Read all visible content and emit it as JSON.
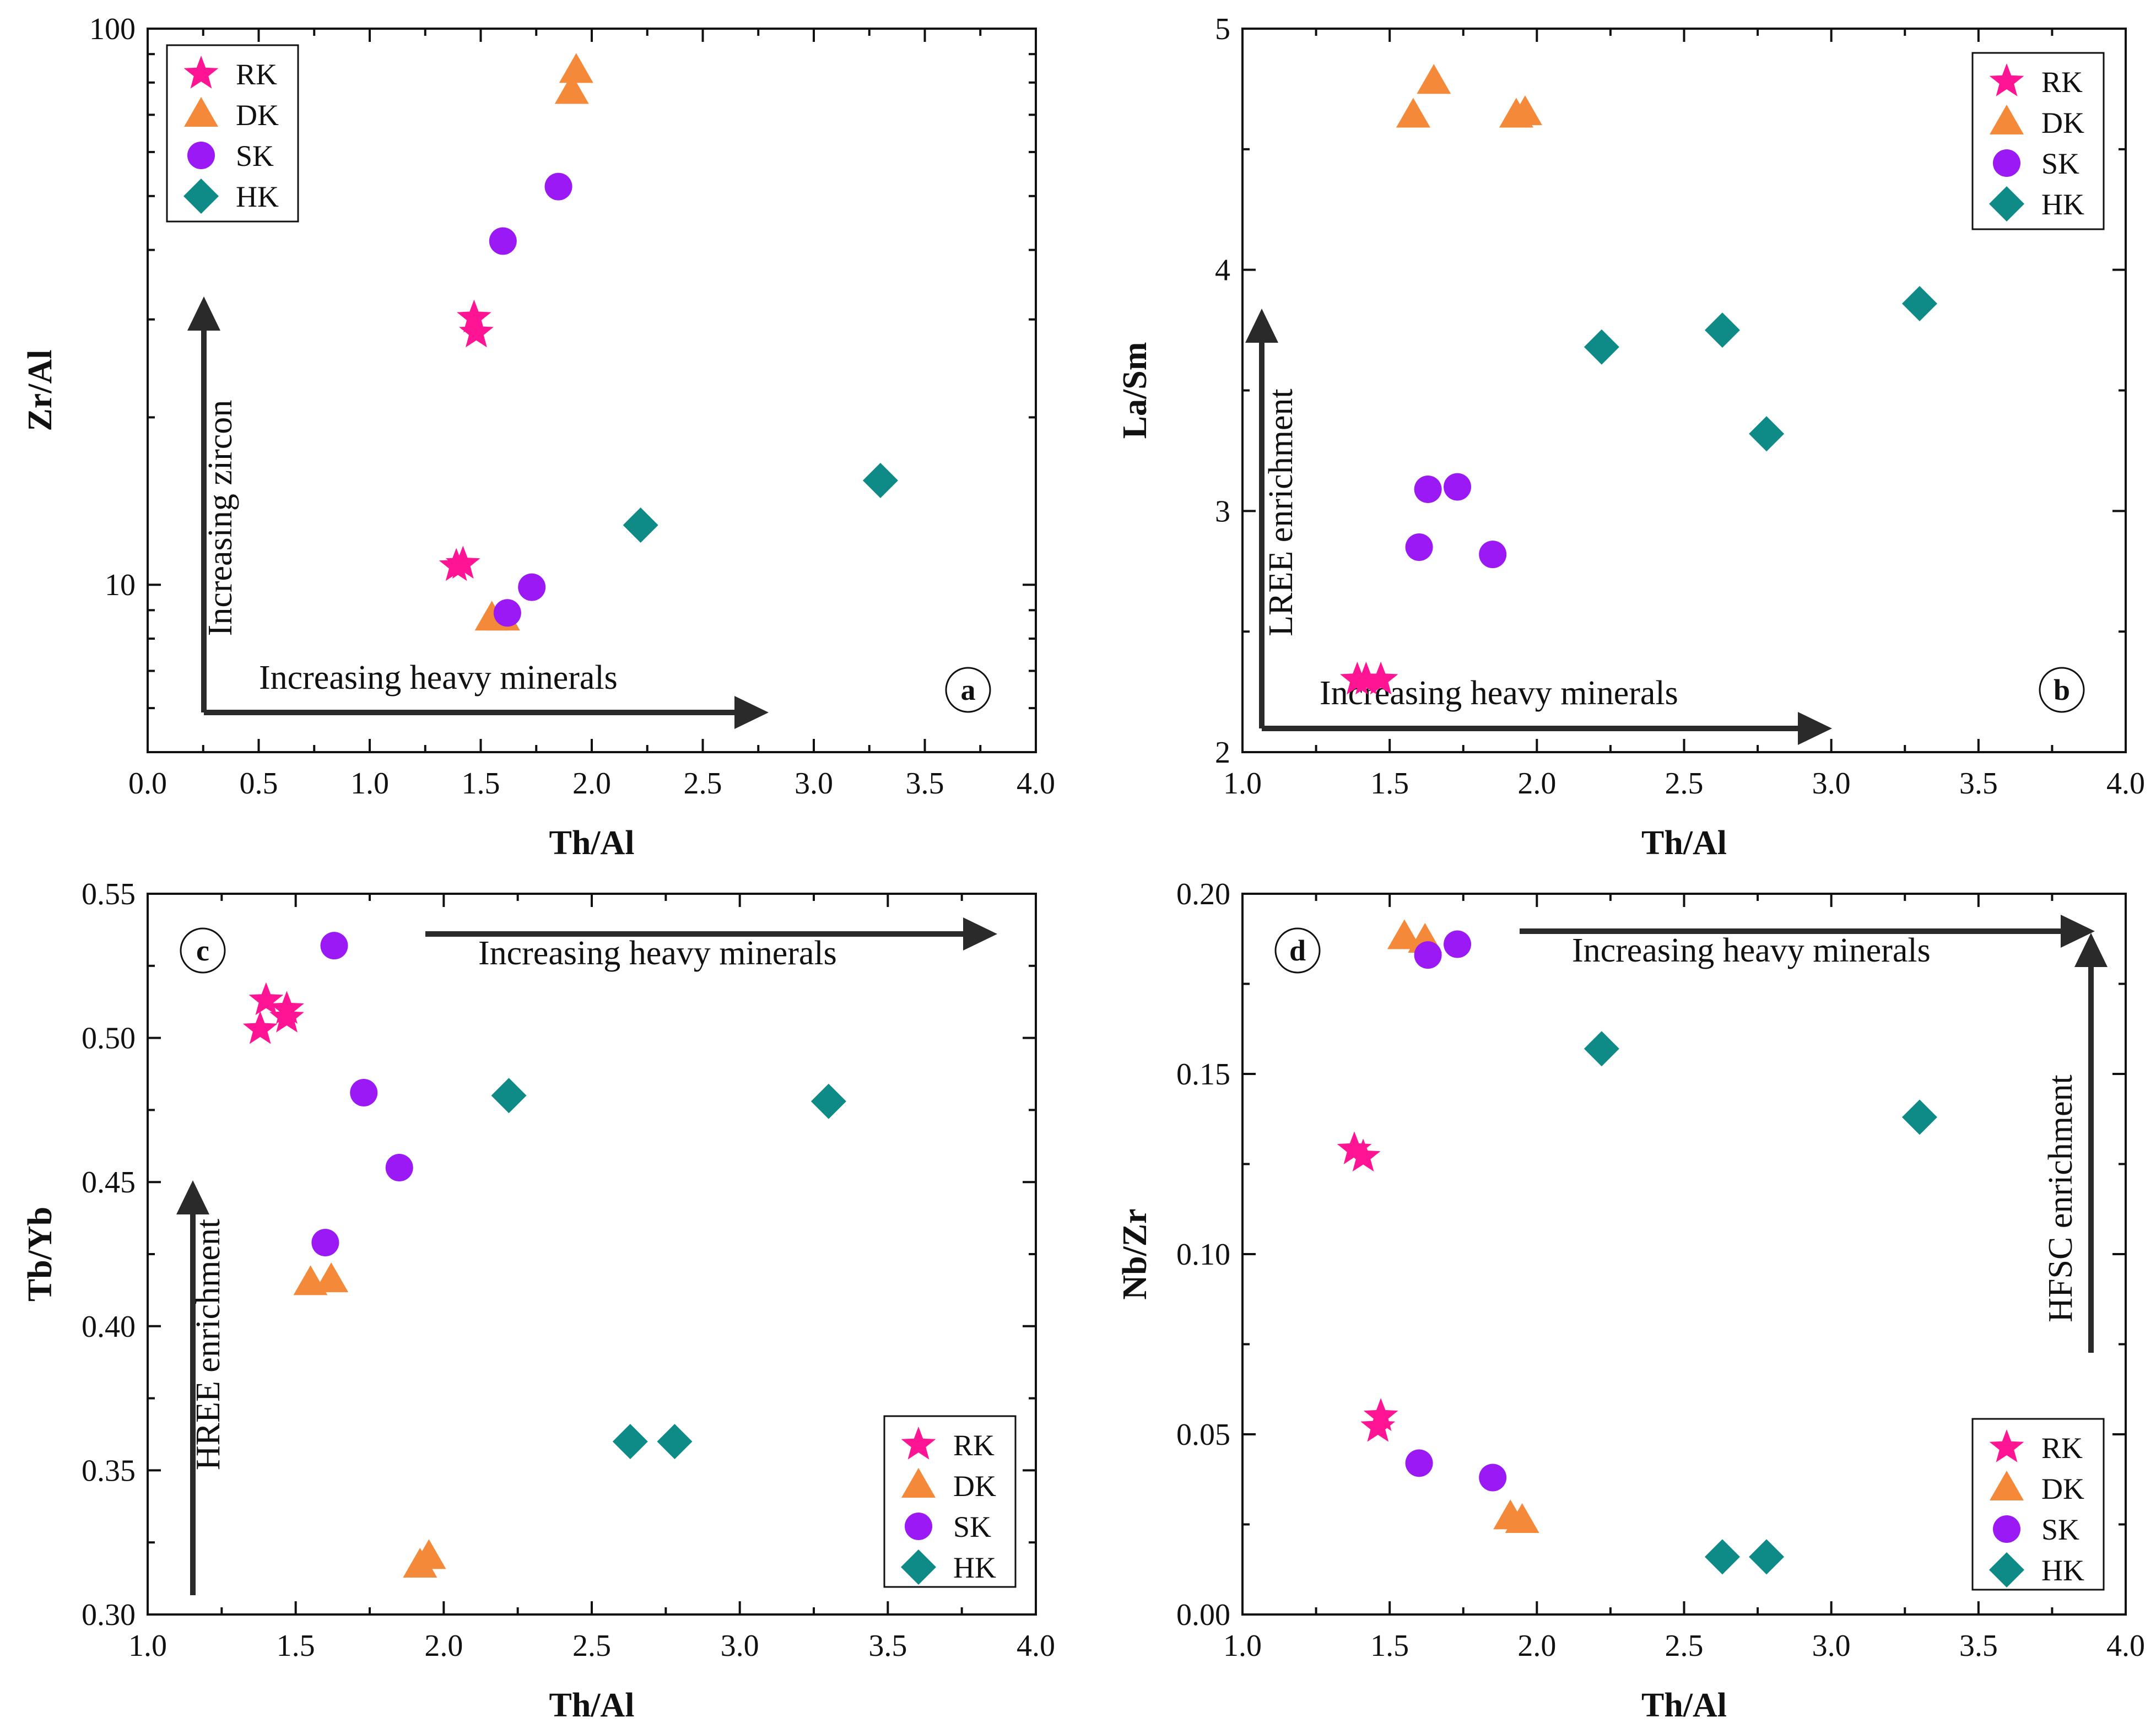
{
  "colors": {
    "RK": "#ff1493",
    "DK": "#f5893a",
    "SK": "#9b19f5",
    "HK": "#0e8a87",
    "axis": "#111111",
    "arrow": "#2a2a2a"
  },
  "legend_entries": [
    "RK",
    "DK",
    "SK",
    "HK"
  ],
  "chart_data": [
    {
      "type": "scatter",
      "panel": "a",
      "xlabel": "Th/Al",
      "ylabel": "Zr/Al",
      "yscale": "log",
      "xlim": [
        0,
        4
      ],
      "ylim": [
        5,
        100
      ],
      "xticks": [
        0,
        0.5,
        1,
        1.5,
        2,
        2.5,
        3,
        3.5,
        4
      ],
      "xtick_labels": [
        "0.0",
        "0.5",
        "1.0",
        "1.5",
        "2.0",
        "2.5",
        "3.0",
        "3.5",
        "4.0"
      ],
      "yticks": [
        10,
        100
      ],
      "ytick_labels": [
        "10",
        "100"
      ],
      "legend_position": "top-left",
      "series": [
        {
          "name": "RK",
          "marker": "star",
          "points": [
            [
              1.47,
              30.2
            ],
            [
              1.48,
              28.4
            ],
            [
              1.39,
              10.8
            ],
            [
              1.42,
              10.9
            ]
          ]
        },
        {
          "name": "DK",
          "marker": "triangle",
          "points": [
            [
              1.93,
              84
            ],
            [
              1.91,
              77
            ],
            [
              1.55,
              8.7
            ],
            [
              1.6,
              8.7
            ]
          ]
        },
        {
          "name": "SK",
          "marker": "circle",
          "points": [
            [
              1.6,
              41.5
            ],
            [
              1.85,
              52
            ],
            [
              1.73,
              9.9
            ],
            [
              1.62,
              8.9
            ]
          ]
        },
        {
          "name": "HK",
          "marker": "diamond",
          "points": [
            [
              2.22,
              12.8
            ],
            [
              3.3,
              15.4
            ]
          ]
        }
      ],
      "annotations": [
        {
          "text": "Increasing heavy minerals",
          "direction": "right"
        },
        {
          "text": "Increasing zircon",
          "direction": "up"
        }
      ]
    },
    {
      "type": "scatter",
      "panel": "b",
      "xlabel": "Th/Al",
      "ylabel": "La/Sm",
      "yscale": "linear",
      "xlim": [
        1,
        4
      ],
      "ylim": [
        2,
        5
      ],
      "xticks": [
        1,
        1.5,
        2,
        2.5,
        3,
        3.5,
        4
      ],
      "xtick_labels": [
        "1.0",
        "1.5",
        "2.0",
        "2.5",
        "3.0",
        "3.5",
        "4.0"
      ],
      "yticks": [
        2,
        3,
        4,
        5
      ],
      "ytick_labels": [
        "2",
        "3",
        "4",
        "5"
      ],
      "legend_position": "top-right",
      "series": [
        {
          "name": "RK",
          "marker": "star",
          "points": [
            [
              1.39,
              2.3
            ],
            [
              1.42,
              2.3
            ],
            [
              1.47,
              2.3
            ]
          ]
        },
        {
          "name": "DK",
          "marker": "triangle",
          "points": [
            [
              1.58,
              4.64
            ],
            [
              1.65,
              4.78
            ],
            [
              1.93,
              4.64
            ],
            [
              1.96,
              4.65
            ]
          ]
        },
        {
          "name": "SK",
          "marker": "circle",
          "points": [
            [
              1.6,
              2.85
            ],
            [
              1.63,
              3.09
            ],
            [
              1.73,
              3.1
            ],
            [
              1.85,
              2.82
            ]
          ]
        },
        {
          "name": "HK",
          "marker": "diamond",
          "points": [
            [
              2.22,
              3.68
            ],
            [
              2.63,
              3.75
            ],
            [
              2.78,
              3.32
            ],
            [
              3.3,
              3.86
            ]
          ]
        }
      ],
      "annotations": [
        {
          "text": "Increasing heavy minerals",
          "direction": "right"
        },
        {
          "text": "LREE enrichment",
          "direction": "up"
        }
      ]
    },
    {
      "type": "scatter",
      "panel": "c",
      "xlabel": "Th/Al",
      "ylabel": "Tb/Yb",
      "yscale": "linear",
      "xlim": [
        1,
        4
      ],
      "ylim": [
        0.3,
        0.55
      ],
      "xticks": [
        1,
        1.5,
        2,
        2.5,
        3,
        3.5,
        4
      ],
      "xtick_labels": [
        "1.0",
        "1.5",
        "2.0",
        "2.5",
        "3.0",
        "3.5",
        "4.0"
      ],
      "yticks": [
        0.3,
        0.35,
        0.4,
        0.45,
        0.5,
        0.55
      ],
      "ytick_labels": [
        "0.30",
        "0.35",
        "0.40",
        "0.45",
        "0.50",
        "0.55"
      ],
      "legend_position": "bottom-right",
      "series": [
        {
          "name": "RK",
          "marker": "star",
          "points": [
            [
              1.4,
              0.513
            ],
            [
              1.47,
              0.51
            ],
            [
              1.47,
              0.507
            ],
            [
              1.38,
              0.503
            ]
          ]
        },
        {
          "name": "DK",
          "marker": "triangle",
          "points": [
            [
              1.55,
              0.415
            ],
            [
              1.62,
              0.416
            ],
            [
              1.95,
              0.32
            ],
            [
              1.92,
              0.317
            ]
          ]
        },
        {
          "name": "SK",
          "marker": "circle",
          "points": [
            [
              1.63,
              0.532
            ],
            [
              1.73,
              0.481
            ],
            [
              1.85,
              0.455
            ],
            [
              1.6,
              0.429
            ]
          ]
        },
        {
          "name": "HK",
          "marker": "diamond",
          "points": [
            [
              2.22,
              0.48
            ],
            [
              3.3,
              0.478
            ],
            [
              2.63,
              0.36
            ],
            [
              2.78,
              0.36
            ]
          ]
        }
      ],
      "annotations": [
        {
          "text": "Increasing heavy minerals",
          "direction": "right"
        },
        {
          "text": "HREE enrichment",
          "direction": "up"
        }
      ]
    },
    {
      "type": "scatter",
      "panel": "d",
      "xlabel": "Th/Al",
      "ylabel": "Nb/Zr",
      "yscale": "linear",
      "xlim": [
        1,
        4
      ],
      "ylim": [
        0,
        0.2
      ],
      "xticks": [
        1,
        1.5,
        2,
        2.5,
        3,
        3.5,
        4
      ],
      "xtick_labels": [
        "1.0",
        "1.5",
        "2.0",
        "2.5",
        "3.0",
        "3.5",
        "4.0"
      ],
      "yticks": [
        0,
        0.05,
        0.1,
        0.15,
        0.2
      ],
      "ytick_labels": [
        "0.00",
        "0.05",
        "0.10",
        "0.15",
        "0.20"
      ],
      "legend_position": "bottom-right",
      "series": [
        {
          "name": "RK",
          "marker": "star",
          "points": [
            [
              1.38,
              0.129
            ],
            [
              1.41,
              0.127
            ],
            [
              1.47,
              0.055
            ],
            [
              1.46,
              0.052
            ]
          ]
        },
        {
          "name": "DK",
          "marker": "triangle",
          "points": [
            [
              1.55,
              0.188
            ],
            [
              1.62,
              0.187
            ],
            [
              1.91,
              0.027
            ],
            [
              1.95,
              0.026
            ]
          ]
        },
        {
          "name": "SK",
          "marker": "circle",
          "points": [
            [
              1.63,
              0.183
            ],
            [
              1.73,
              0.186
            ],
            [
              1.6,
              0.042
            ],
            [
              1.85,
              0.038
            ]
          ]
        },
        {
          "name": "HK",
          "marker": "diamond",
          "points": [
            [
              2.22,
              0.157
            ],
            [
              3.3,
              0.138
            ],
            [
              2.63,
              0.016
            ],
            [
              2.78,
              0.016
            ]
          ]
        }
      ],
      "annotations": [
        {
          "text": "Increasing heavy minerals",
          "direction": "right"
        },
        {
          "text": "HFSC enrichment",
          "direction": "up"
        }
      ]
    }
  ]
}
